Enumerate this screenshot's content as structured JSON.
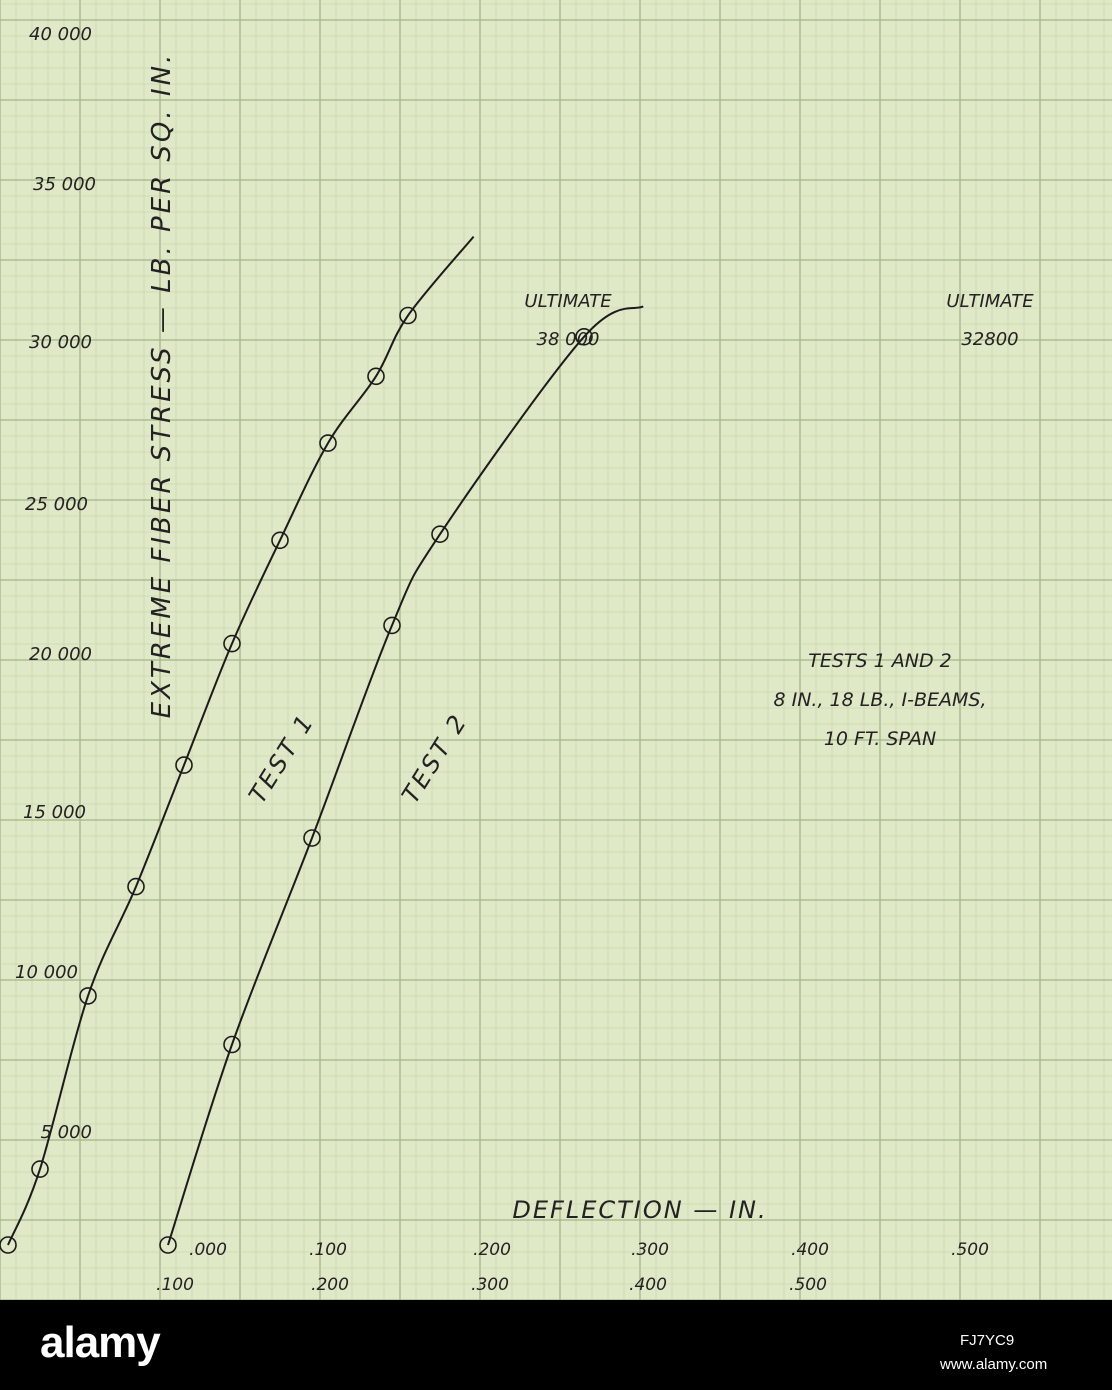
{
  "chart_data": {
    "type": "line",
    "title": "",
    "xlabel": "DEFLECTION — IN.",
    "ylabel": "EXTREME FIBER STRESS — LB. PER SQ. IN.",
    "ylim": [
      0,
      40000
    ],
    "grid": true,
    "y_ticks": [
      "5 000",
      "10 000",
      "15 000",
      "20 000",
      "25 000",
      "30 000",
      "35 000",
      "40 000"
    ],
    "x_ticks_upper": [
      ".000",
      ".100",
      ".200",
      ".300",
      ".400",
      ".500"
    ],
    "x_ticks_lower": [
      ".100",
      ".200",
      ".300",
      ".400",
      ".500"
    ],
    "series": [
      {
        "name": "TEST 1",
        "x": [
          0.0,
          0.02,
          0.05,
          0.08,
          0.11,
          0.14,
          0.17,
          0.2,
          0.23,
          0.25
        ],
        "y": [
          0,
          2500,
          8200,
          11800,
          15800,
          19800,
          23200,
          26400,
          28600,
          30600
        ],
        "annotation": "ULTIMATE 38 000"
      },
      {
        "name": "TEST 2",
        "x": [
          0.0,
          0.04,
          0.09,
          0.14,
          0.17,
          0.26
        ],
        "y": [
          0,
          6600,
          13400,
          20400,
          23400,
          29900
        ],
        "annotation": "ULTIMATE 32800"
      }
    ],
    "note": [
      "TESTS 1 AND 2",
      "8 IN., 18 LB., I-BEAMS,",
      "10 FT. SPAN"
    ]
  },
  "watermark": {
    "brand": "alamy",
    "footer_code": "FJ7YC9",
    "footer_url": "www.alamy.com"
  },
  "colors": {
    "paper": "#dfe8c7",
    "grid_minor": "#c3d1a6",
    "grid_major": "#a3b586",
    "ink": "#1b1b1b"
  }
}
